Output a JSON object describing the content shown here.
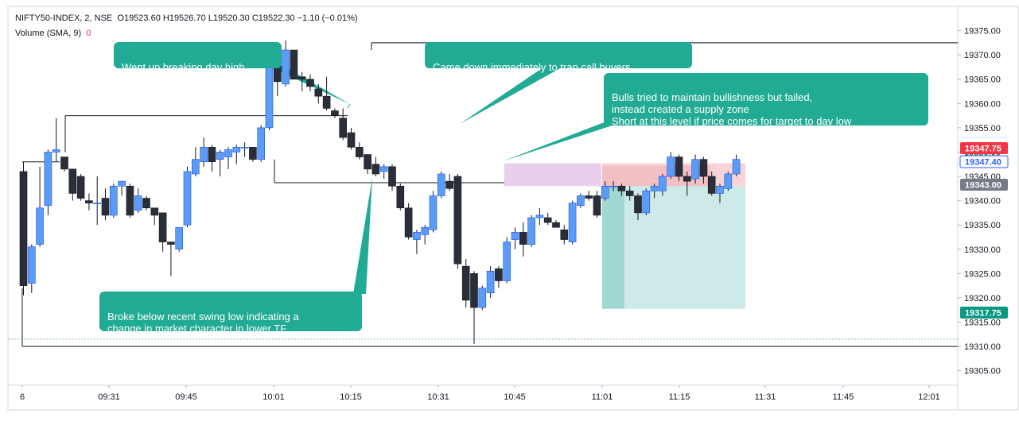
{
  "header": {
    "symbol": "NIFTY50-INDEX, 2, NSE",
    "ohlc": "O19523.60  H19526.70  L19520.30  C19522.30  −1.10 (−0.01%)",
    "indicator": "Volume (SMA, 9)",
    "indicator_value": "0"
  },
  "annotations": [
    "Went up breaking day high",
    "Came down immediately to trap call buyers",
    "Bulls tried to maintain bullishness but failed,\ninstead created a supply zone\nShort at this level if price comes for target to day low",
    "Broke below recent swing low indicating a\nchange in market character in lower TF"
  ],
  "colors": {
    "up": "#5b9cf6",
    "down": "#2a2e39",
    "callout": "#22ab94",
    "price_red": "#f23645",
    "price_blue": "#2962ff",
    "price_gray": "#787b86",
    "price_green": "#089981"
  },
  "chart_data": {
    "type": "candlestick",
    "x_tick_labels": [
      "6",
      "09:31",
      "09:45",
      "10:01",
      "10:15",
      "10:31",
      "10:45",
      "11:01",
      "11:15",
      "11:31",
      "11:45",
      "12:01"
    ],
    "y_ticks": [
      19305,
      19310,
      19315,
      19320,
      19325,
      19330,
      19335,
      19340,
      19345,
      19350,
      19355,
      19360,
      19365,
      19370,
      19375
    ],
    "ylim": [
      19302,
      19380
    ],
    "price_labels": [
      {
        "value": 19347.75,
        "text": "19347.75",
        "style": "red"
      },
      {
        "value": 19347.4,
        "text": "19347.40",
        "style": "blue"
      },
      {
        "value": 19343.0,
        "text": "19343.00",
        "style": "gray"
      },
      {
        "value": 19317.75,
        "text": "19317.75",
        "style": "green"
      }
    ],
    "candles": [
      {
        "o": 19346.0,
        "h": 19348.0,
        "l": 19320.5,
        "c": 19322.5
      },
      {
        "o": 19323.0,
        "h": 19331.0,
        "l": 19321.0,
        "c": 19330.5
      },
      {
        "o": 19331.0,
        "h": 19347.0,
        "l": 19330.5,
        "c": 19338.5
      },
      {
        "o": 19339.0,
        "h": 19350.5,
        "l": 19337.0,
        "c": 19350.0
      },
      {
        "o": 19350.0,
        "h": 19357.0,
        "l": 19348.0,
        "c": 19350.5
      },
      {
        "o": 19349.0,
        "h": 19349.0,
        "l": 19346.0,
        "c": 19346.5
      },
      {
        "o": 19346.5,
        "h": 19346.5,
        "l": 19340.0,
        "c": 19341.5
      },
      {
        "o": 19345.0,
        "h": 19345.5,
        "l": 19340.0,
        "c": 19340.5
      },
      {
        "o": 19340.0,
        "h": 19341.5,
        "l": 19338.0,
        "c": 19339.5
      },
      {
        "o": 19339.5,
        "h": 19345.0,
        "l": 19335.0,
        "c": 19339.5
      },
      {
        "o": 19340.5,
        "h": 19342.5,
        "l": 19336.0,
        "c": 19337.0
      },
      {
        "o": 19337.0,
        "h": 19343.5,
        "l": 19336.5,
        "c": 19343.0
      },
      {
        "o": 19343.0,
        "h": 19344.0,
        "l": 19341.0,
        "c": 19344.0
      },
      {
        "o": 19343.0,
        "h": 19343.5,
        "l": 19336.5,
        "c": 19337.0
      },
      {
        "o": 19338.0,
        "h": 19342.5,
        "l": 19337.5,
        "c": 19341.0
      },
      {
        "o": 19340.5,
        "h": 19341.0,
        "l": 19338.0,
        "c": 19338.5
      },
      {
        "o": 19338.5,
        "h": 19338.5,
        "l": 19335.0,
        "c": 19337.0
      },
      {
        "o": 19337.5,
        "h": 19337.5,
        "l": 19329.5,
        "c": 19331.5
      },
      {
        "o": 19331.5,
        "h": 19331.5,
        "l": 19324.5,
        "c": 19331.0
      },
      {
        "o": 19330.0,
        "h": 19334.5,
        "l": 19329.5,
        "c": 19334.5
      },
      {
        "o": 19335.0,
        "h": 19347.0,
        "l": 19334.5,
        "c": 19346.0
      },
      {
        "o": 19345.5,
        "h": 19351.0,
        "l": 19345.0,
        "c": 19348.5
      },
      {
        "o": 19348.0,
        "h": 19353.0,
        "l": 19347.0,
        "c": 19351.0
      },
      {
        "o": 19351.0,
        "h": 19351.5,
        "l": 19346.0,
        "c": 19348.0
      },
      {
        "o": 19348.5,
        "h": 19350.5,
        "l": 19345.0,
        "c": 19350.0
      },
      {
        "o": 19349.0,
        "h": 19351.0,
        "l": 19346.5,
        "c": 19350.5
      },
      {
        "o": 19350.0,
        "h": 19351.5,
        "l": 19347.5,
        "c": 19351.0
      },
      {
        "o": 19351.0,
        "h": 19352.0,
        "l": 19349.0,
        "c": 19351.0
      },
      {
        "o": 19351.0,
        "h": 19351.0,
        "l": 19348.0,
        "c": 19348.5
      },
      {
        "o": 19348.5,
        "h": 19355.5,
        "l": 19348.0,
        "c": 19355.0
      },
      {
        "o": 19355.0,
        "h": 19369.0,
        "l": 19354.5,
        "c": 19368.0
      },
      {
        "o": 19368.0,
        "h": 19368.5,
        "l": 19361.5,
        "c": 19364.5
      },
      {
        "o": 19364.0,
        "h": 19373.0,
        "l": 19363.5,
        "c": 19371.0
      },
      {
        "o": 19371.0,
        "h": 19371.0,
        "l": 19365.0,
        "c": 19365.0
      },
      {
        "o": 19365.5,
        "h": 19366.5,
        "l": 19362.5,
        "c": 19365.0
      },
      {
        "o": 19365.0,
        "h": 19366.0,
        "l": 19362.5,
        "c": 19363.5
      },
      {
        "o": 19363.0,
        "h": 19364.0,
        "l": 19360.0,
        "c": 19361.5
      },
      {
        "o": 19361.5,
        "h": 19365.5,
        "l": 19358.5,
        "c": 19359.0
      },
      {
        "o": 19358.5,
        "h": 19359.0,
        "l": 19357.0,
        "c": 19357.5
      },
      {
        "o": 19357.0,
        "h": 19359.0,
        "l": 19352.5,
        "c": 19353.0
      },
      {
        "o": 19354.0,
        "h": 19355.0,
        "l": 19350.5,
        "c": 19351.0
      },
      {
        "o": 19351.0,
        "h": 19352.0,
        "l": 19348.5,
        "c": 19349.0
      },
      {
        "o": 19349.5,
        "h": 19349.5,
        "l": 19345.5,
        "c": 19346.5
      },
      {
        "o": 19347.5,
        "h": 19349.0,
        "l": 19345.0,
        "c": 19345.5
      },
      {
        "o": 19346.0,
        "h": 19347.5,
        "l": 19344.5,
        "c": 19347.0
      },
      {
        "o": 19347.0,
        "h": 19347.5,
        "l": 19342.0,
        "c": 19343.0
      },
      {
        "o": 19343.0,
        "h": 19343.5,
        "l": 19338.0,
        "c": 19338.5
      },
      {
        "o": 19338.5,
        "h": 19339.5,
        "l": 19332.0,
        "c": 19332.5
      },
      {
        "o": 19332.0,
        "h": 19334.0,
        "l": 19329.0,
        "c": 19333.5
      },
      {
        "o": 19333.0,
        "h": 19335.0,
        "l": 19331.0,
        "c": 19334.5
      },
      {
        "o": 19334.0,
        "h": 19342.0,
        "l": 19333.5,
        "c": 19341.0
      },
      {
        "o": 19341.0,
        "h": 19346.0,
        "l": 19340.5,
        "c": 19345.5
      },
      {
        "o": 19344.0,
        "h": 19345.5,
        "l": 19342.0,
        "c": 19342.5
      },
      {
        "o": 19345.0,
        "h": 19345.5,
        "l": 19326.0,
        "c": 19327.0
      },
      {
        "o": 19326.5,
        "h": 19328.0,
        "l": 19318.0,
        "c": 19319.5
      },
      {
        "o": 19325.0,
        "h": 19325.5,
        "l": 19310.5,
        "c": 19318.0
      },
      {
        "o": 19318.0,
        "h": 19322.5,
        "l": 19317.5,
        "c": 19322.0
      },
      {
        "o": 19321.0,
        "h": 19326.5,
        "l": 19320.0,
        "c": 19325.5
      },
      {
        "o": 19326.0,
        "h": 19326.5,
        "l": 19322.0,
        "c": 19323.5
      },
      {
        "o": 19323.5,
        "h": 19332.5,
        "l": 19323.0,
        "c": 19331.5
      },
      {
        "o": 19332.0,
        "h": 19334.5,
        "l": 19330.0,
        "c": 19333.5
      },
      {
        "o": 19333.5,
        "h": 19335.5,
        "l": 19328.5,
        "c": 19331.0
      },
      {
        "o": 19331.0,
        "h": 19337.0,
        "l": 19330.5,
        "c": 19336.5
      },
      {
        "o": 19336.5,
        "h": 19338.5,
        "l": 19335.0,
        "c": 19337.0
      },
      {
        "o": 19336.5,
        "h": 19337.5,
        "l": 19335.0,
        "c": 19335.5
      },
      {
        "o": 19335.5,
        "h": 19336.0,
        "l": 19334.5,
        "c": 19334.5
      },
      {
        "o": 19334.0,
        "h": 19335.0,
        "l": 19331.0,
        "c": 19332.0
      },
      {
        "o": 19331.5,
        "h": 19340.0,
        "l": 19331.0,
        "c": 19339.5
      },
      {
        "o": 19339.0,
        "h": 19341.5,
        "l": 19338.5,
        "c": 19341.0
      },
      {
        "o": 19341.0,
        "h": 19342.0,
        "l": 19340.0,
        "c": 19340.5
      },
      {
        "o": 19341.0,
        "h": 19342.0,
        "l": 19336.5,
        "c": 19337.0
      },
      {
        "o": 19340.5,
        "h": 19344.0,
        "l": 19340.0,
        "c": 19343.0
      },
      {
        "o": 19343.0,
        "h": 19344.0,
        "l": 19342.0,
        "c": 19343.0
      },
      {
        "o": 19343.0,
        "h": 19343.5,
        "l": 19341.0,
        "c": 19342.0
      },
      {
        "o": 19342.0,
        "h": 19343.0,
        "l": 19340.0,
        "c": 19341.0
      },
      {
        "o": 19341.0,
        "h": 19341.5,
        "l": 19336.0,
        "c": 19337.5
      },
      {
        "o": 19337.5,
        "h": 19342.5,
        "l": 19337.0,
        "c": 19342.0
      },
      {
        "o": 19342.0,
        "h": 19343.5,
        "l": 19340.5,
        "c": 19343.0
      },
      {
        "o": 19342.0,
        "h": 19345.5,
        "l": 19341.0,
        "c": 19345.0
      },
      {
        "o": 19345.0,
        "h": 19350.0,
        "l": 19344.5,
        "c": 19349.0
      },
      {
        "o": 19349.0,
        "h": 19349.5,
        "l": 19344.0,
        "c": 19345.0
      },
      {
        "o": 19345.0,
        "h": 19346.0,
        "l": 19341.0,
        "c": 19344.0
      },
      {
        "o": 19344.5,
        "h": 19349.5,
        "l": 19343.5,
        "c": 19348.5
      },
      {
        "o": 19348.5,
        "h": 19349.0,
        "l": 19343.5,
        "c": 19345.0
      },
      {
        "o": 19345.0,
        "h": 19346.0,
        "l": 19341.0,
        "c": 19341.5
      },
      {
        "o": 19341.5,
        "h": 19343.5,
        "l": 19339.5,
        "c": 19343.0
      },
      {
        "o": 19342.5,
        "h": 19346.0,
        "l": 19342.0,
        "c": 19345.5
      },
      {
        "o": 19345.5,
        "h": 19349.5,
        "l": 19345.0,
        "c": 19348.5
      }
    ],
    "levels": [
      {
        "name": "day-high",
        "value": 19372.5
      },
      {
        "name": "swing-high",
        "value": 19357.5
      },
      {
        "name": "opening-high",
        "value": 19348.0
      },
      {
        "name": "swing-low",
        "value": 19343.7
      },
      {
        "name": "day-low",
        "value": 19310.0
      },
      {
        "name": "supply-zone-top",
        "value": 19347.7
      },
      {
        "name": "supply-zone-bottom",
        "value": 19343.0
      },
      {
        "name": "target",
        "value": 19317.75
      }
    ]
  }
}
